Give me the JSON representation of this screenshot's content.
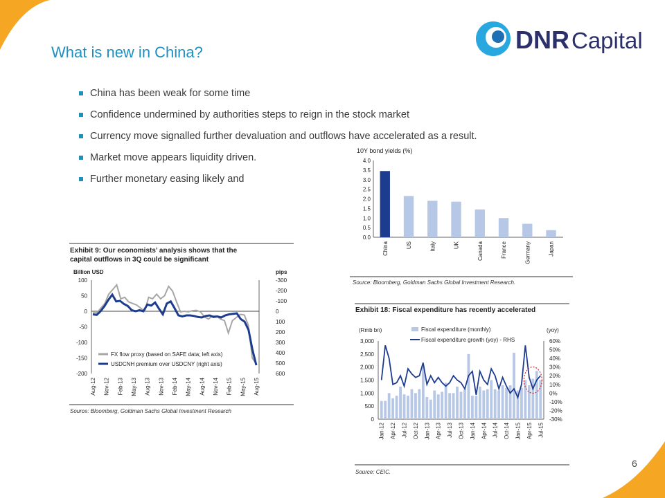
{
  "slide": {
    "title": "What is new in China?",
    "bullets": [
      "China has been weak for some time",
      "Confidence undermined by authorities steps to reign in the stock market",
      "Currency move signalled further devaluation and outflows have accelerated as a result.",
      "Market move appears liquidity driven.",
      "Further monetary easing likely and"
    ],
    "page_number": "6",
    "logo": {
      "word_bold": "DNR",
      "word_light": "Capital"
    },
    "colors": {
      "title": "#1e8fc0",
      "accent_orange": "#f5a623",
      "navy": "#1d3b8f",
      "light_bar": "#b7c7e6",
      "grey_line": "#a6a6a6",
      "red_marker": "#d9262e"
    }
  },
  "chart_data": [
    {
      "type": "bar",
      "title": "10Y bond yields (%)",
      "categories": [
        "China",
        "US",
        "Italy",
        "UK",
        "Canada",
        "France",
        "Germany",
        "Japan"
      ],
      "values": [
        3.45,
        2.15,
        1.9,
        1.85,
        1.45,
        1.0,
        0.7,
        0.37
      ],
      "ylim": [
        0,
        4
      ],
      "yticks": [
        "0.0",
        "0.5",
        "1.0",
        "1.5",
        "2.0",
        "2.5",
        "3.0",
        "3.5",
        "4.0"
      ],
      "source": "Source: Bloomberg, Goldman Sachs Global Investment Research."
    },
    {
      "type": "line",
      "title_lines": [
        "Exhibit 9: Our economists’ analysis shows that the",
        "capital outflows in 3Q could be significant"
      ],
      "left_axis_label": "Billion USD",
      "right_axis_label": "pips",
      "left_ylim": [
        -200,
        100
      ],
      "right_ylim": [
        600,
        -300
      ],
      "left_ticks": [
        "100",
        "50",
        "0",
        "-50",
        "-100",
        "-150",
        "-200"
      ],
      "right_ticks": [
        "-300",
        "-200",
        "-100",
        "0",
        "100",
        "200",
        "300",
        "400",
        "500",
        "600"
      ],
      "x_tick_labels": [
        "Aug-12",
        "Nov-12",
        "Feb-13",
        "May-13",
        "Aug-13",
        "Nov-13",
        "Feb-14",
        "May-14",
        "Aug-14",
        "Nov-14",
        "Feb-15",
        "May-15",
        "Aug-15"
      ],
      "series": [
        {
          "name": "FX flow proxy (based on SAFE data; left axis)",
          "axis": "left",
          "color": "#a6a6a6",
          "values": [
            -5,
            -5,
            10,
            25,
            55,
            70,
            85,
            40,
            45,
            30,
            25,
            20,
            10,
            0,
            45,
            40,
            55,
            40,
            50,
            80,
            65,
            30,
            -2,
            0,
            -2,
            2,
            3,
            -2,
            -18,
            -25,
            -15,
            -15,
            -25,
            -30,
            -70,
            -30,
            -20,
            -10,
            -12,
            -45,
            -150,
            -170
          ]
        },
        {
          "name": "USDCNH premium over USDCNY (right axis)",
          "axis": "right",
          "color": "#1d3b8f",
          "values": [
            30,
            35,
            0,
            -50,
            -110,
            -160,
            -95,
            -100,
            -70,
            -50,
            -10,
            0,
            -10,
            0,
            -65,
            -55,
            -85,
            -25,
            30,
            -75,
            -95,
            -30,
            40,
            50,
            40,
            40,
            45,
            55,
            60,
            45,
            40,
            55,
            50,
            60,
            40,
            30,
            25,
            20,
            75,
            100,
            180,
            370,
            520
          ]
        }
      ],
      "source": "Source: Bloomberg, Goldman Sachs Global Investment Research"
    },
    {
      "type": "bar+line",
      "title": "Exhibit 18: Fiscal expenditure has recently accelerated",
      "left_axis_label": "(Rmb bn)",
      "right_axis_label": "(yoy)",
      "left_ylim": [
        0,
        3000
      ],
      "right_ylim": [
        -30,
        60
      ],
      "left_ticks": [
        "3,000",
        "2,500",
        "2,000",
        "1,500",
        "1,000",
        "500",
        "0"
      ],
      "right_ticks": [
        "60%",
        "50%",
        "40%",
        "30%",
        "20%",
        "10%",
        "0%",
        "-10%",
        "-20%",
        "-30%"
      ],
      "x_tick_labels": [
        "Jan-12",
        "Apr-12",
        "Jul-12",
        "Oct-12",
        "Jan-13",
        "Apr-13",
        "Jul-13",
        "Oct-13",
        "Jan-14",
        "Apr-14",
        "Jul-14",
        "Oct-14",
        "Jan-15",
        "Apr-15",
        "Jul-15"
      ],
      "series": [
        {
          "name": "Fiscal expenditure (monthly)",
          "type": "bar",
          "axis": "left",
          "color": "#b7c7e6",
          "values": [
            700,
            700,
            1000,
            800,
            900,
            1250,
            950,
            900,
            1150,
            1000,
            1150,
            2050,
            850,
            750,
            1100,
            950,
            1050,
            1400,
            1000,
            1000,
            1250,
            1050,
            1150,
            2500,
            900,
            900,
            1250,
            1100,
            1150,
            1500,
            1150,
            1100,
            1300,
            1200,
            1300,
            2550,
            1100,
            1200,
            1500,
            1300,
            1550,
            1850,
            1500
          ]
        },
        {
          "name": "Fiscal expenditure growth (yoy) - RHS",
          "type": "line",
          "axis": "right",
          "color": "#1d3b8f",
          "values": [
            15,
            55,
            40,
            10,
            12,
            20,
            8,
            28,
            22,
            18,
            20,
            35,
            10,
            20,
            12,
            18,
            12,
            8,
            12,
            20,
            15,
            12,
            5,
            20,
            25,
            -2,
            25,
            15,
            10,
            28,
            20,
            5,
            18,
            8,
            0,
            5,
            -5,
            10,
            55,
            18,
            5,
            15,
            20
          ]
        }
      ],
      "source": "Source: CEIC."
    }
  ]
}
